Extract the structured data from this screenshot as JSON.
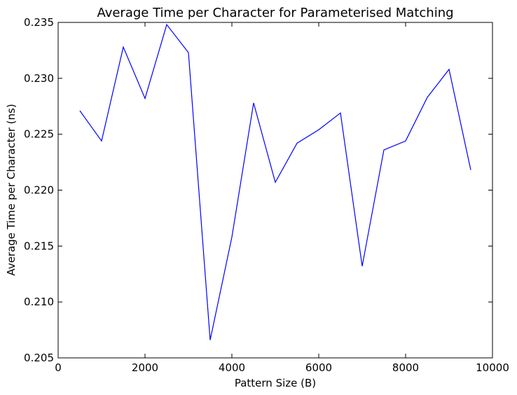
{
  "chart_data": {
    "type": "line",
    "title": "Average Time per Character for Parameterised Matching",
    "xlabel": "Pattern Size (B)",
    "ylabel": "Average Time per Character (ns)",
    "xlim": [
      0,
      10000
    ],
    "ylim": [
      0.205,
      0.235
    ],
    "x_ticks": [
      0,
      2000,
      4000,
      6000,
      8000,
      10000
    ],
    "y_ticks": [
      0.205,
      0.21,
      0.215,
      0.22,
      0.225,
      0.23,
      0.235
    ],
    "x_tick_labels": [
      "0",
      "2000",
      "4000",
      "6000",
      "8000",
      "10000"
    ],
    "y_tick_labels": [
      "0.205",
      "0.210",
      "0.215",
      "0.220",
      "0.225",
      "0.230",
      "0.235"
    ],
    "grid": false,
    "series": [
      {
        "color": "#0000ff",
        "x": [
          500,
          1000,
          1500,
          2000,
          2500,
          3000,
          3500,
          4000,
          4500,
          5000,
          5500,
          6000,
          6500,
          7000,
          7500,
          8000,
          8500,
          9000,
          9500
        ],
        "y": [
          0.2271,
          0.2244,
          0.2328,
          0.2282,
          0.2348,
          0.2323,
          0.2066,
          0.2158,
          0.2278,
          0.2207,
          0.2242,
          0.2254,
          0.2269,
          0.2132,
          0.2236,
          0.2244,
          0.2283,
          0.2308,
          0.2218
        ]
      }
    ]
  }
}
